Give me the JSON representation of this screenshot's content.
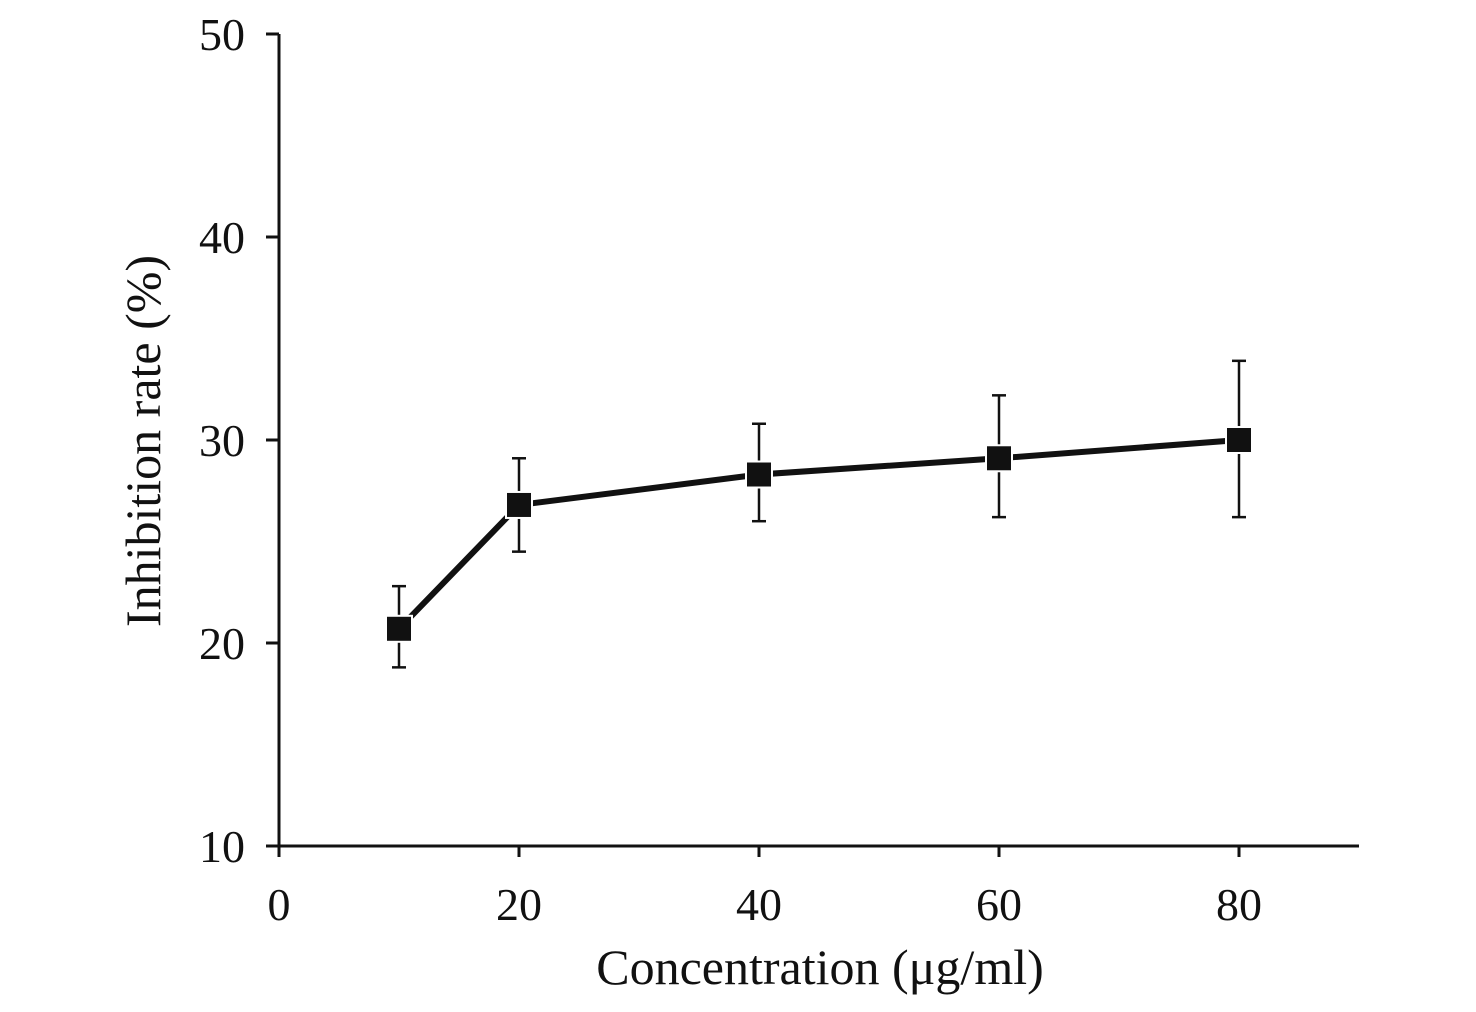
{
  "chart_data": {
    "type": "line",
    "title": "",
    "xlabel": "Concentration (μg/ml)",
    "ylabel": "Inhibition rate (%)",
    "xlim": [
      0,
      90
    ],
    "ylim": [
      10,
      50
    ],
    "x_ticks": [
      0,
      20,
      40,
      60,
      80
    ],
    "y_ticks": [
      10,
      20,
      30,
      40,
      50
    ],
    "grid": false,
    "legend": "none",
    "series": [
      {
        "x": [
          10,
          20,
          40,
          60,
          80
        ],
        "y": [
          20.7,
          26.8,
          28.3,
          29.1,
          30.0
        ],
        "error_upper": [
          22.8,
          29.1,
          30.8,
          32.2,
          33.9
        ],
        "error_lower": [
          18.8,
          24.5,
          26.0,
          26.2,
          26.2
        ],
        "marker": "square",
        "color": "#111111"
      }
    ]
  }
}
